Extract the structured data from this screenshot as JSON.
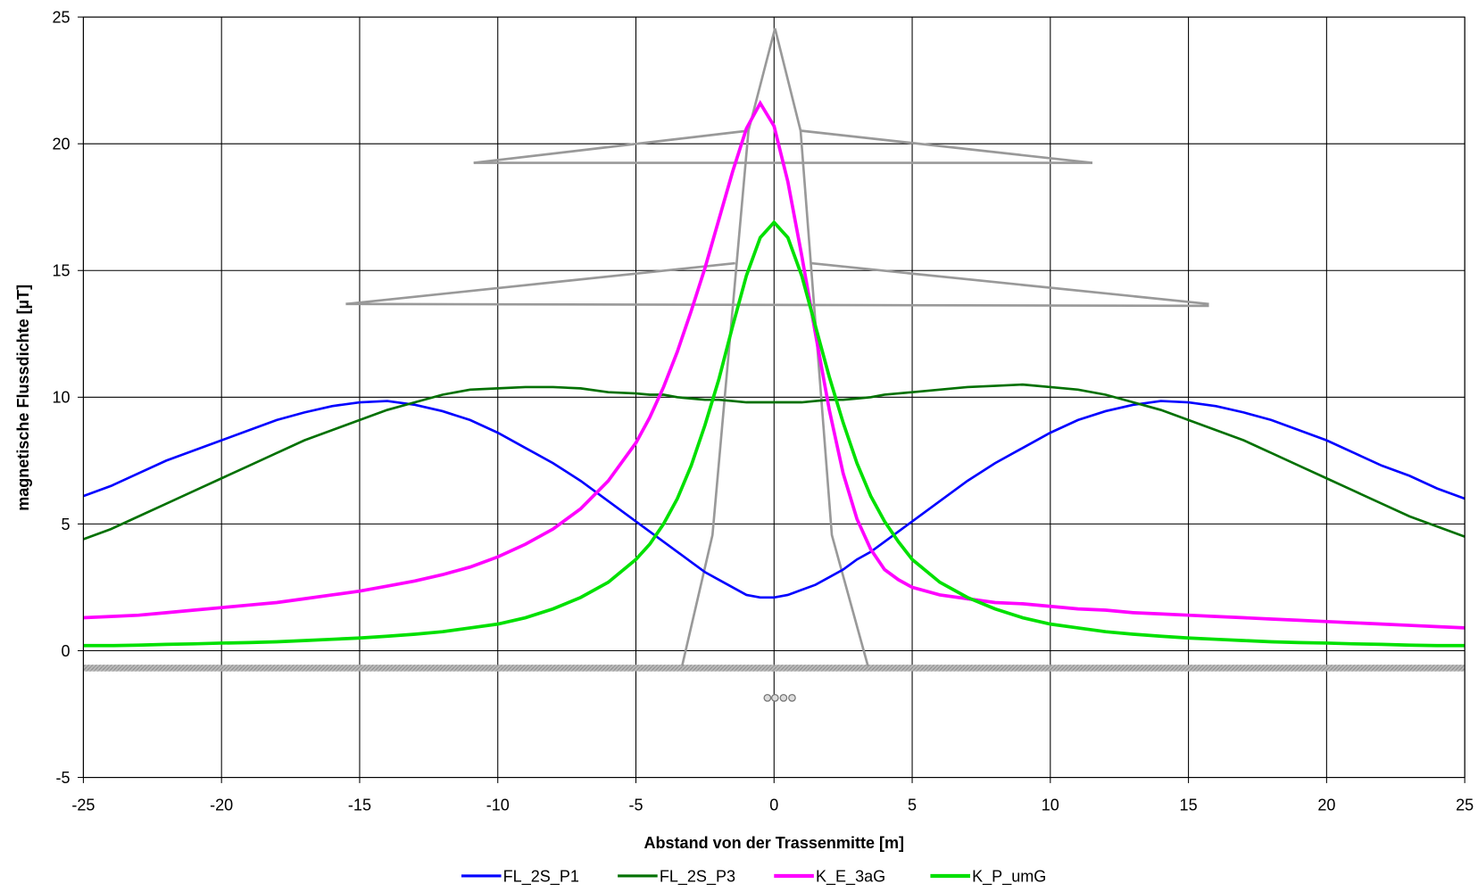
{
  "chart_data": {
    "type": "line",
    "x_label": "Abstand von der Trassenmitte [m]",
    "y_label": "magnetische Flussdichte [µT]",
    "xlim": [
      -25,
      25
    ],
    "ylim": [
      -5,
      25
    ],
    "xticks": [
      -25,
      -20,
      -15,
      -10,
      -5,
      0,
      5,
      10,
      15,
      20,
      25
    ],
    "yticks": [
      -5,
      0,
      5,
      10,
      15,
      20,
      25
    ],
    "grid": true,
    "legend": "bottom",
    "x": [
      -25,
      -24,
      -23,
      -22,
      -21,
      -20,
      -19,
      -18,
      -17,
      -16,
      -15,
      -14,
      -13,
      -12,
      -11,
      -10,
      -9,
      -8,
      -7,
      -6,
      -5,
      -4.5,
      -4,
      -3.5,
      -3,
      -2.5,
      -2,
      -1.5,
      -1,
      -0.5,
      0,
      0.5,
      1,
      1.5,
      2,
      2.5,
      3,
      3.5,
      4,
      4.5,
      5,
      6,
      7,
      8,
      9,
      10,
      11,
      12,
      13,
      14,
      15,
      16,
      17,
      18,
      19,
      20,
      21,
      22,
      23,
      24,
      25
    ],
    "series": [
      {
        "name": "FL_2S_P1",
        "color": "#0000ff",
        "values": [
          6.1,
          6.5,
          7.0,
          7.5,
          7.9,
          8.3,
          8.7,
          9.1,
          9.4,
          9.65,
          9.8,
          9.85,
          9.7,
          9.45,
          9.1,
          8.6,
          8.0,
          7.4,
          6.7,
          5.9,
          5.1,
          4.7,
          4.3,
          3.9,
          3.5,
          3.1,
          2.8,
          2.5,
          2.2,
          2.1,
          2.1,
          2.2,
          2.4,
          2.6,
          2.9,
          3.2,
          3.6,
          3.9,
          4.3,
          4.7,
          5.1,
          5.9,
          6.7,
          7.4,
          8.0,
          8.6,
          9.1,
          9.45,
          9.7,
          9.85,
          9.8,
          9.65,
          9.4,
          9.1,
          8.7,
          8.3,
          7.8,
          7.3,
          6.9,
          6.4,
          6.0
        ]
      },
      {
        "name": "FL_2S_P3",
        "color": "#007000",
        "values": [
          4.4,
          4.8,
          5.3,
          5.8,
          6.3,
          6.8,
          7.3,
          7.8,
          8.3,
          8.7,
          9.1,
          9.5,
          9.8,
          10.1,
          10.3,
          10.35,
          10.4,
          10.4,
          10.35,
          10.2,
          10.15,
          10.1,
          10.1,
          10.0,
          9.95,
          9.9,
          9.9,
          9.85,
          9.8,
          9.8,
          9.8,
          9.8,
          9.8,
          9.85,
          9.9,
          9.9,
          9.95,
          10.0,
          10.1,
          10.15,
          10.2,
          10.3,
          10.4,
          10.45,
          10.5,
          10.4,
          10.3,
          10.1,
          9.8,
          9.5,
          9.1,
          8.7,
          8.3,
          7.8,
          7.3,
          6.8,
          6.3,
          5.8,
          5.3,
          4.9,
          4.5
        ]
      },
      {
        "name": "K_E_3aG",
        "color": "#ff00ff",
        "values": [
          1.3,
          1.35,
          1.4,
          1.5,
          1.6,
          1.7,
          1.8,
          1.9,
          2.05,
          2.2,
          2.35,
          2.55,
          2.75,
          3.0,
          3.3,
          3.7,
          4.2,
          4.8,
          5.6,
          6.7,
          8.2,
          9.2,
          10.4,
          11.8,
          13.4,
          15.1,
          17.0,
          18.9,
          20.6,
          21.6,
          20.7,
          18.5,
          15.6,
          12.5,
          9.5,
          7.0,
          5.2,
          4.0,
          3.2,
          2.8,
          2.5,
          2.2,
          2.05,
          1.9,
          1.85,
          1.75,
          1.65,
          1.6,
          1.5,
          1.45,
          1.4,
          1.35,
          1.3,
          1.25,
          1.2,
          1.15,
          1.1,
          1.05,
          1.0,
          0.95,
          0.9
        ]
      },
      {
        "name": "K_P_umG",
        "color": "#00e000",
        "values": [
          0.2,
          0.2,
          0.22,
          0.25,
          0.27,
          0.3,
          0.32,
          0.35,
          0.4,
          0.45,
          0.5,
          0.57,
          0.65,
          0.75,
          0.9,
          1.05,
          1.3,
          1.65,
          2.1,
          2.7,
          3.6,
          4.2,
          5.0,
          6.0,
          7.3,
          8.9,
          10.7,
          12.8,
          14.8,
          16.3,
          16.9,
          16.3,
          14.8,
          12.8,
          10.8,
          9.0,
          7.4,
          6.1,
          5.1,
          4.3,
          3.6,
          2.7,
          2.1,
          1.65,
          1.3,
          1.05,
          0.9,
          0.75,
          0.65,
          0.57,
          0.5,
          0.45,
          0.4,
          0.35,
          0.32,
          0.3,
          0.27,
          0.25,
          0.22,
          0.2,
          0.2
        ]
      }
    ]
  }
}
